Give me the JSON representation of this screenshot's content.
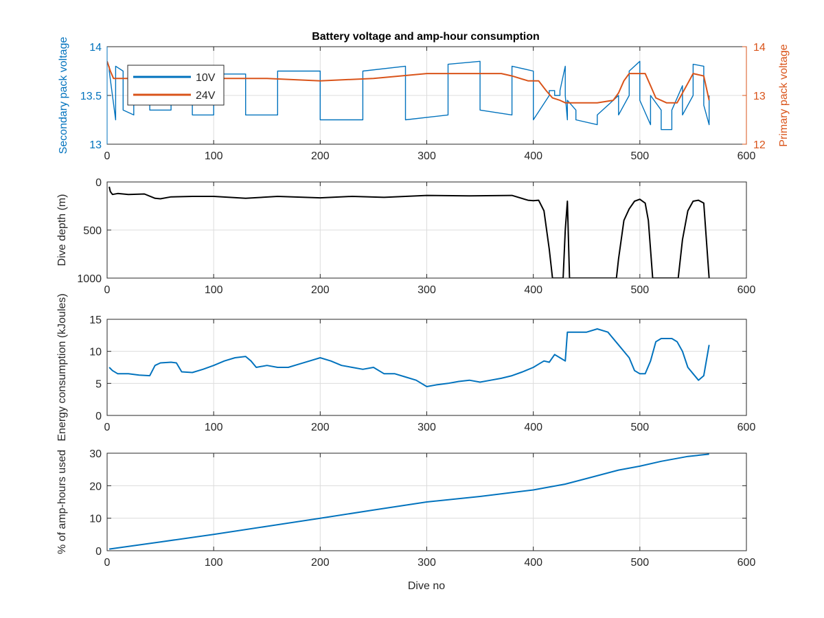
{
  "figure": {
    "title": "Battery voltage and amp-hour consumption",
    "x_label": "Dive no",
    "x_ticks": [
      "0",
      "100",
      "200",
      "300",
      "400",
      "500",
      "600"
    ]
  },
  "colors": {
    "blue": "#0072BD",
    "orange": "#D95319",
    "black": "#000000",
    "grid": "#dcdcdc",
    "axis": "#262626"
  },
  "chart_data": [
    {
      "type": "line",
      "title": "Battery voltage and amp-hour consumption",
      "xlabel": "",
      "ylabel": "Secondary pack voltage",
      "ylabel_right": "Primary pack voltage",
      "xlim": [
        0,
        600
      ],
      "ylim": [
        13,
        14
      ],
      "ylim_right": [
        12,
        14
      ],
      "yticks": [
        "13",
        "13.5",
        "14"
      ],
      "yticks_right": [
        "12",
        "13",
        "14"
      ],
      "grid": true,
      "legend": {
        "placement": "top-left",
        "entries": [
          "10V",
          "24V"
        ]
      },
      "series": [
        {
          "name": "10V",
          "axis": "left",
          "x": [
            2,
            8,
            15,
            25,
            40,
            60,
            80,
            100,
            130,
            160,
            200,
            240,
            280,
            320,
            350,
            380,
            400,
            415,
            420,
            425,
            430,
            432,
            440,
            460,
            480,
            490,
            500,
            510,
            520,
            530,
            540,
            550,
            560,
            565
          ],
          "low": [
            13.75,
            13.25,
            13.35,
            13.3,
            13.35,
            13.35,
            13.3,
            13.3,
            13.3,
            13.3,
            13.25,
            13.25,
            13.25,
            13.3,
            13.35,
            13.3,
            13.25,
            13.5,
            13.5,
            13.5,
            13.5,
            13.25,
            13.25,
            13.2,
            13.3,
            13.5,
            13.45,
            13.2,
            13.15,
            13.15,
            13.3,
            13.5,
            13.4,
            13.2
          ],
          "high": [
            13.8,
            13.8,
            13.75,
            13.72,
            13.75,
            13.75,
            13.72,
            13.72,
            13.72,
            13.75,
            13.75,
            13.75,
            13.8,
            13.82,
            13.85,
            13.8,
            13.75,
            13.55,
            13.55,
            13.55,
            13.8,
            13.45,
            13.35,
            13.3,
            13.5,
            13.75,
            13.85,
            13.5,
            13.35,
            13.35,
            13.6,
            13.82,
            13.8,
            13.5
          ]
        },
        {
          "name": "24V",
          "axis": "right",
          "x": [
            0,
            3,
            6,
            12,
            30,
            60,
            100,
            150,
            200,
            250,
            300,
            340,
            370,
            380,
            395,
            405,
            412,
            418,
            425,
            430,
            440,
            460,
            475,
            480,
            485,
            490,
            495,
            505,
            510,
            515,
            525,
            535,
            545,
            550,
            560,
            565
          ],
          "values": [
            13.7,
            13.5,
            13.35,
            13.35,
            13.35,
            13.35,
            13.35,
            13.35,
            13.3,
            13.35,
            13.45,
            13.45,
            13.45,
            13.4,
            13.3,
            13.3,
            13.1,
            12.95,
            12.9,
            12.85,
            12.85,
            12.85,
            12.9,
            13.05,
            13.3,
            13.45,
            13.45,
            13.45,
            13.2,
            12.95,
            12.85,
            12.85,
            13.25,
            13.45,
            13.4,
            12.9
          ]
        }
      ]
    },
    {
      "type": "line",
      "xlabel": "",
      "ylabel": "Dive depth (m)",
      "xlim": [
        0,
        600
      ],
      "ylim": [
        0,
        1000
      ],
      "y_reversed": true,
      "yticks": [
        "0",
        "500",
        "1000"
      ],
      "grid": true,
      "series": [
        {
          "x": [
            2,
            3,
            5,
            10,
            20,
            35,
            45,
            50,
            60,
            80,
            100,
            130,
            160,
            200,
            230,
            260,
            300,
            340,
            380,
            395,
            400,
            405,
            410,
            415,
            418,
            422,
            428,
            430,
            432,
            434,
            440,
            460,
            478,
            480,
            485,
            490,
            495,
            500,
            505,
            508,
            512,
            520,
            530,
            536,
            540,
            545,
            550,
            555,
            560,
            565
          ],
          "values": [
            50,
            100,
            130,
            120,
            130,
            125,
            170,
            175,
            155,
            150,
            150,
            170,
            150,
            165,
            150,
            160,
            140,
            145,
            140,
            190,
            195,
            190,
            300,
            700,
            1000,
            1000,
            1000,
            500,
            200,
            1000,
            1000,
            1000,
            1000,
            800,
            400,
            280,
            200,
            180,
            220,
            400,
            1000,
            1000,
            1000,
            1000,
            600,
            300,
            200,
            190,
            220,
            1000
          ]
        }
      ]
    },
    {
      "type": "line",
      "xlabel": "",
      "ylabel": "Energy consumption (kJoules)",
      "xlim": [
        0,
        600
      ],
      "ylim": [
        0,
        15
      ],
      "yticks": [
        "0",
        "5",
        "10",
        "15"
      ],
      "grid": true,
      "series": [
        {
          "x": [
            2,
            5,
            10,
            20,
            30,
            40,
            45,
            50,
            60,
            65,
            70,
            80,
            90,
            100,
            110,
            120,
            130,
            135,
            140,
            150,
            160,
            170,
            180,
            190,
            200,
            210,
            220,
            230,
            240,
            250,
            260,
            270,
            280,
            290,
            300,
            310,
            320,
            330,
            340,
            350,
            360,
            370,
            380,
            390,
            400,
            405,
            410,
            415,
            420,
            425,
            430,
            432,
            440,
            450,
            460,
            470,
            480,
            490,
            495,
            500,
            505,
            510,
            515,
            520,
            530,
            535,
            540,
            545,
            550,
            555,
            560,
            565
          ],
          "values": [
            7.5,
            7,
            6.5,
            6.5,
            6.3,
            6.2,
            7.8,
            8.2,
            8.3,
            8.2,
            6.8,
            6.7,
            7.2,
            7.8,
            8.5,
            9.0,
            9.2,
            8.5,
            7.5,
            7.8,
            7.5,
            7.5,
            8.0,
            8.5,
            9.0,
            8.5,
            7.8,
            7.5,
            7.2,
            7.5,
            6.5,
            6.5,
            6.0,
            5.5,
            4.5,
            4.8,
            5.0,
            5.3,
            5.5,
            5.2,
            5.5,
            5.8,
            6.2,
            6.8,
            7.5,
            8.0,
            8.5,
            8.3,
            9.5,
            9.0,
            8.5,
            13.0,
            13.0,
            13.0,
            13.5,
            13.0,
            11.0,
            9.0,
            7.0,
            6.5,
            6.5,
            8.5,
            11.5,
            12.0,
            12.0,
            11.5,
            10.0,
            7.5,
            6.5,
            5.5,
            6.2,
            11.0
          ]
        }
      ]
    },
    {
      "type": "line",
      "xlabel": "Dive no",
      "ylabel": "% of amp-hours used",
      "xlim": [
        0,
        600
      ],
      "ylim": [
        0,
        30
      ],
      "yticks": [
        "0",
        "10",
        "20",
        "30"
      ],
      "grid": true,
      "series": [
        {
          "x": [
            2,
            50,
            100,
            150,
            200,
            250,
            300,
            350,
            400,
            430,
            450,
            480,
            500,
            520,
            545,
            565
          ],
          "values": [
            0.5,
            2.7,
            5.0,
            7.5,
            10.0,
            12.5,
            15.0,
            16.7,
            18.7,
            20.5,
            22.2,
            24.8,
            26.0,
            27.5,
            29.0,
            29.7
          ]
        }
      ]
    }
  ]
}
